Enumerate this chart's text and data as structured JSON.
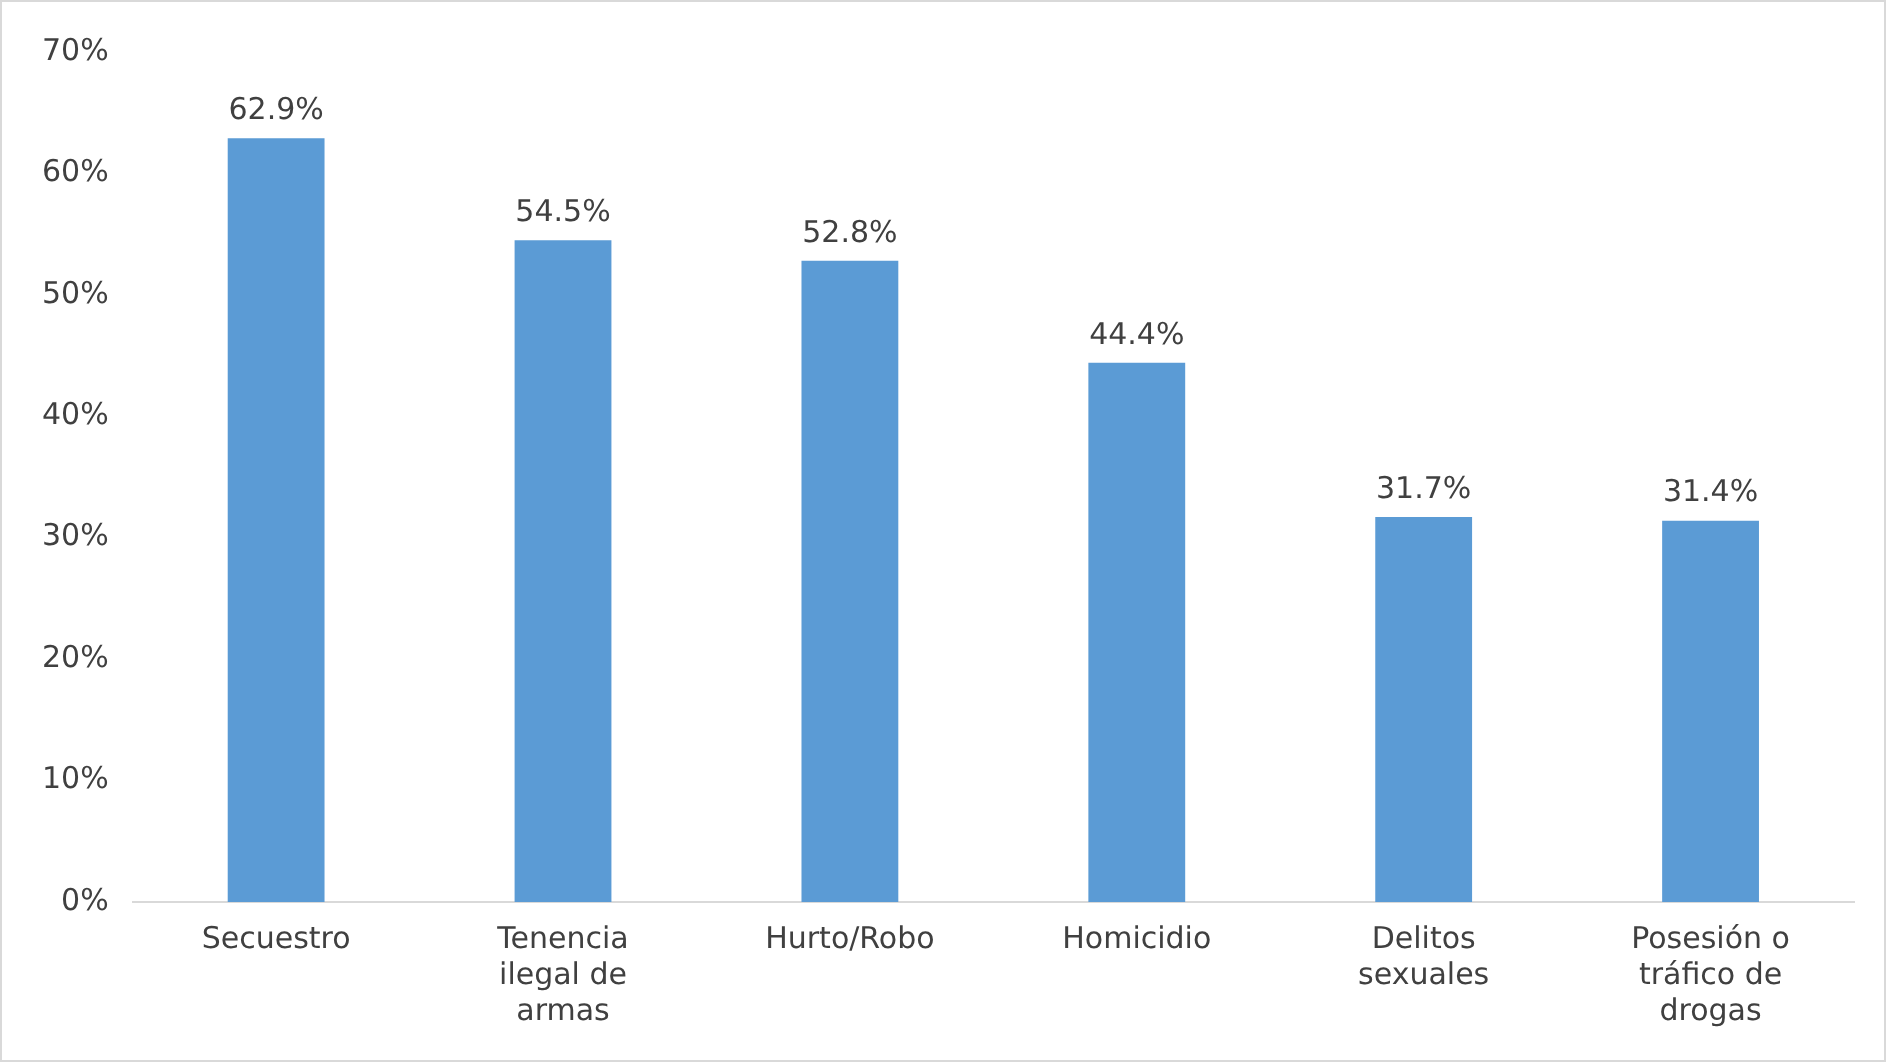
{
  "chart_data": {
    "type": "bar",
    "categories": [
      "Secuestro",
      "Tenencia ilegal de armas",
      "Hurto/Robo",
      "Homicidio",
      "Delitos sexuales",
      "Posesión o tráfico de drogas"
    ],
    "values": [
      62.9,
      54.5,
      52.8,
      44.4,
      31.7,
      31.4
    ],
    "value_labels": [
      "62.9%",
      "54.5%",
      "52.8%",
      "44.4%",
      "31.7%",
      "31.4%"
    ],
    "color": "#5b9bd5",
    "ylim": [
      0,
      70
    ],
    "yticks": [
      {
        "value": 0,
        "label": "0%"
      },
      {
        "value": 10,
        "label": "10%"
      },
      {
        "value": 20,
        "label": "20%"
      },
      {
        "value": 30,
        "label": "30%"
      },
      {
        "value": 40,
        "label": "40%"
      },
      {
        "value": 50,
        "label": "50%"
      },
      {
        "value": 60,
        "label": "60%"
      },
      {
        "value": 70,
        "label": "70%"
      }
    ],
    "grid": false,
    "legend": false
  }
}
